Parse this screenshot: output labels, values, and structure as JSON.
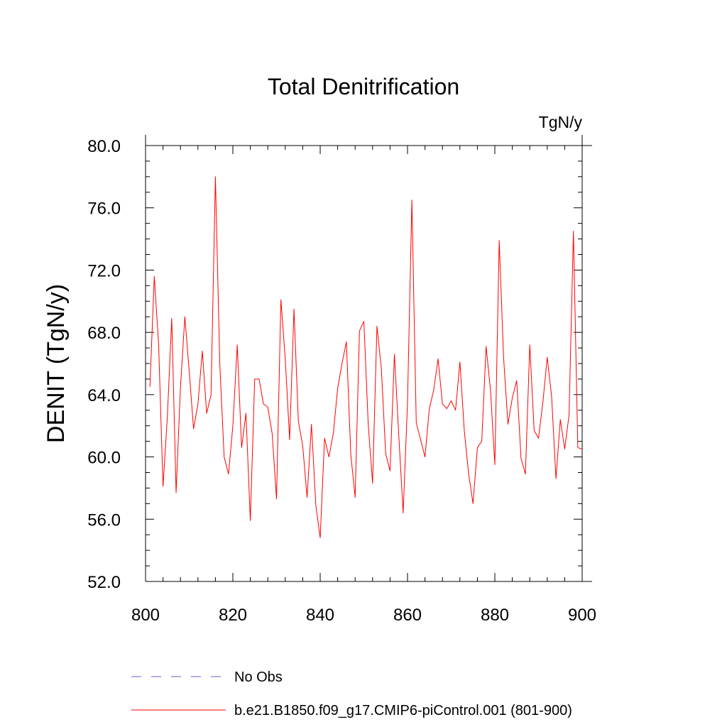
{
  "colors": {
    "model_line": "#ff0000",
    "obs_line": "#6a5acd",
    "axis": "#000000",
    "background": "#ffffff"
  },
  "chart_data": {
    "type": "line",
    "title": "Total Denitrification",
    "units": "TgN/y",
    "xlabel": "",
    "ylabel": "DENIT  (TgN/y)",
    "xlim": [
      800,
      900
    ],
    "ylim": [
      52,
      80
    ],
    "x_ticks": [
      800,
      820,
      840,
      860,
      880,
      900
    ],
    "x_tick_labels": [
      "800",
      "820",
      "840",
      "860",
      "880",
      "900"
    ],
    "y_ticks": [
      52,
      56,
      60,
      64,
      68,
      72,
      76,
      80
    ],
    "y_tick_labels": [
      "52.0",
      "56.0",
      "60.0",
      "64.0",
      "68.0",
      "72.0",
      "76.0",
      "80.0"
    ],
    "grid": false,
    "legend_position": "bottom-left",
    "series": [
      {
        "name": "No Obs",
        "style": "dashed",
        "color": "#6a5acd",
        "x": [],
        "values": []
      },
      {
        "name": "b.e21.B1850.f09_g17.CMIP6-piControl.001 (801-900)",
        "style": "solid",
        "color": "#ff0000",
        "x": [
          801,
          802,
          803,
          804,
          805,
          806,
          807,
          808,
          809,
          810,
          811,
          812,
          813,
          814,
          815,
          816,
          817,
          818,
          819,
          820,
          821,
          822,
          823,
          824,
          825,
          826,
          827,
          828,
          829,
          830,
          831,
          832,
          833,
          834,
          835,
          836,
          837,
          838,
          839,
          840,
          841,
          842,
          843,
          844,
          845,
          846,
          847,
          848,
          849,
          850,
          851,
          852,
          853,
          854,
          855,
          856,
          857,
          858,
          859,
          860,
          861,
          862,
          863,
          864,
          865,
          866,
          867,
          868,
          869,
          870,
          871,
          872,
          873,
          874,
          875,
          876,
          877,
          878,
          879,
          880,
          881,
          882,
          883,
          884,
          885,
          886,
          887,
          888,
          889,
          890,
          891,
          892,
          893,
          894,
          895,
          896,
          897,
          898,
          899,
          900
        ],
        "values": [
          64.5,
          71.6,
          67.2,
          58.1,
          62.6,
          68.9,
          57.7,
          64.5,
          69.0,
          65.5,
          61.8,
          63.4,
          66.8,
          62.8,
          64.0,
          78.0,
          66.0,
          60.0,
          58.9,
          62.0,
          67.2,
          60.6,
          62.8,
          55.9,
          65.0,
          65.0,
          63.4,
          63.2,
          61.5,
          57.3,
          70.1,
          66.3,
          61.1,
          69.5,
          62.3,
          60.7,
          57.4,
          62.1,
          56.9,
          54.8,
          61.2,
          60.0,
          61.5,
          64.4,
          66.0,
          67.4,
          60.2,
          57.4,
          68.1,
          68.7,
          62.1,
          58.3,
          68.4,
          65.7,
          60.2,
          59.1,
          66.6,
          61.4,
          56.4,
          63.5,
          76.5,
          62.2,
          61.1,
          60.0,
          63.1,
          64.3,
          66.3,
          63.4,
          63.1,
          63.6,
          63.0,
          66.1,
          61.7,
          58.9,
          57.0,
          60.6,
          61.0,
          67.1,
          64.3,
          59.5,
          73.9,
          66.4,
          62.1,
          63.8,
          64.9,
          59.9,
          58.9,
          67.2,
          61.7,
          61.2,
          63.5,
          66.4,
          63.9,
          58.6,
          62.4,
          60.5,
          62.7,
          74.5,
          60.6,
          60.5
        ]
      }
    ]
  }
}
